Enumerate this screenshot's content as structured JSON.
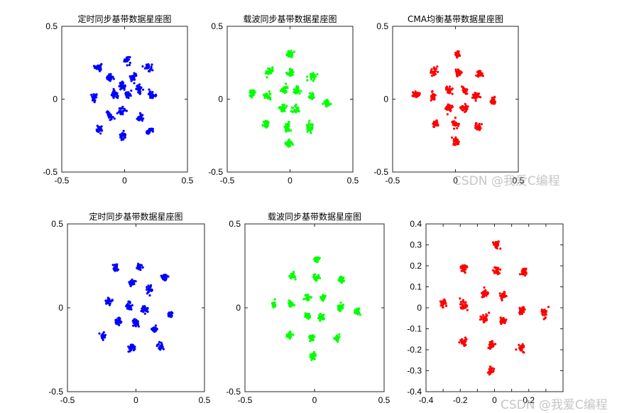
{
  "chart_data": [
    {
      "type": "scatter",
      "title": "定时同步基带数据星座图",
      "color": "#0000ff",
      "xlim": [
        -0.5,
        0.5
      ],
      "ylim": [
        -0.5,
        0.5
      ],
      "xticks": [
        -0.5,
        0,
        0.5
      ],
      "yticks": [
        -0.5,
        0,
        0.5
      ],
      "xtick_labels": [
        "-0.5",
        "0",
        "0.5"
      ],
      "ytick_labels": [
        "-0.5",
        "0",
        "0.5"
      ],
      "clusters": [
        [
          -0.21,
          0.22
        ],
        [
          0.02,
          0.27
        ],
        [
          0.19,
          0.22
        ],
        [
          -0.12,
          0.15
        ],
        [
          0.07,
          0.15
        ],
        [
          -0.02,
          0.09
        ],
        [
          0.12,
          0.07
        ],
        [
          -0.24,
          0.01
        ],
        [
          -0.08,
          0.03
        ],
        [
          0.03,
          0.03
        ],
        [
          0.22,
          0.03
        ],
        [
          -0.12,
          -0.11
        ],
        [
          -0.02,
          -0.08
        ],
        [
          0.12,
          -0.13
        ],
        [
          -0.2,
          -0.21
        ],
        [
          -0.01,
          -0.25
        ],
        [
          0.19,
          -0.22
        ]
      ],
      "spread": 0.022
    },
    {
      "type": "scatter",
      "title": "载波同步基带数据星座图",
      "color": "#00ff00",
      "xlim": [
        -0.5,
        0.5
      ],
      "ylim": [
        -0.5,
        0.5
      ],
      "xticks": [
        -0.5,
        0,
        0.5
      ],
      "yticks": [
        -0.5,
        0,
        0.5
      ],
      "xtick_labels": [
        "-0.5",
        "0",
        "0.5"
      ],
      "ytick_labels": [
        "-0.5",
        "0",
        "0.5"
      ],
      "clusters": [
        [
          0.0,
          0.31
        ],
        [
          -0.16,
          0.19
        ],
        [
          0.0,
          0.18
        ],
        [
          0.18,
          0.16
        ],
        [
          -0.3,
          0.04
        ],
        [
          -0.18,
          0.02
        ],
        [
          -0.05,
          0.07
        ],
        [
          0.06,
          0.06
        ],
        [
          0.17,
          0.02
        ],
        [
          0.29,
          -0.03
        ],
        [
          -0.06,
          -0.06
        ],
        [
          0.05,
          -0.07
        ],
        [
          -0.19,
          -0.17
        ],
        [
          -0.02,
          -0.19
        ],
        [
          0.16,
          -0.19
        ],
        [
          -0.01,
          -0.3
        ]
      ],
      "spread": 0.022
    },
    {
      "type": "scatter",
      "title": "CMA均衡基带数据星座图",
      "color": "#ff0000",
      "xlim": [
        -0.5,
        0.5
      ],
      "ylim": [
        -0.5,
        0.5
      ],
      "xticks": [
        -0.5,
        0,
        0.5
      ],
      "yticks": [
        -0.5,
        0,
        0.5
      ],
      "xtick_labels": [
        "-0.5",
        "0",
        "0.5"
      ],
      "ytick_labels": [
        "-0.5",
        "0",
        "0.5"
      ],
      "clusters": [
        [
          0.02,
          0.31
        ],
        [
          -0.17,
          0.19
        ],
        [
          0.02,
          0.18
        ],
        [
          0.19,
          0.17
        ],
        [
          -0.31,
          0.03
        ],
        [
          -0.18,
          0.02
        ],
        [
          -0.05,
          0.06
        ],
        [
          0.07,
          0.06
        ],
        [
          0.17,
          0.02
        ],
        [
          0.3,
          -0.01
        ],
        [
          -0.05,
          -0.06
        ],
        [
          0.07,
          -0.06
        ],
        [
          -0.16,
          -0.17
        ],
        [
          0.0,
          -0.17
        ],
        [
          0.18,
          -0.19
        ],
        [
          0.0,
          -0.29
        ]
      ],
      "spread": 0.022
    },
    {
      "type": "scatter",
      "title": "定时同步基带数据星座图",
      "color": "#0000ff",
      "xlim": [
        -0.5,
        0.5
      ],
      "ylim": [
        -0.5,
        0.5
      ],
      "xticks": [
        -0.5,
        0,
        0.5
      ],
      "yticks": [
        -0.5,
        0,
        0.5
      ],
      "xtick_labels": [
        "-0.5",
        "0",
        "0.5"
      ],
      "ytick_labels": [
        "-0.5",
        "0",
        "0.5"
      ],
      "clusters": [
        [
          -0.15,
          0.24
        ],
        [
          0.02,
          0.24
        ],
        [
          0.21,
          0.18
        ],
        [
          -0.03,
          0.15
        ],
        [
          0.1,
          0.11
        ],
        [
          -0.2,
          0.04
        ],
        [
          -0.05,
          0.01
        ],
        [
          0.06,
          -0.01
        ],
        [
          0.25,
          -0.04
        ],
        [
          -0.13,
          -0.08
        ],
        [
          0.0,
          -0.09
        ],
        [
          0.13,
          -0.13
        ],
        [
          -0.24,
          -0.17
        ],
        [
          -0.03,
          -0.24
        ],
        [
          0.18,
          -0.23
        ]
      ],
      "spread": 0.018
    },
    {
      "type": "scatter",
      "title": "载波同步基带数据星座图",
      "color": "#00ff00",
      "xlim": [
        -0.5,
        0.5
      ],
      "ylim": [
        -0.5,
        0.5
      ],
      "xticks": [
        -0.5,
        0,
        0.5
      ],
      "yticks": [
        -0.5,
        0,
        0.5
      ],
      "xtick_labels": [
        "-0.5",
        "0",
        "0.5"
      ],
      "ytick_labels": [
        "-0.5",
        "0",
        "0.5"
      ],
      "clusters": [
        [
          0.02,
          0.29
        ],
        [
          -0.16,
          0.19
        ],
        [
          0.01,
          0.18
        ],
        [
          0.19,
          0.17
        ],
        [
          -0.29,
          0.02
        ],
        [
          -0.17,
          0.02
        ],
        [
          -0.05,
          0.06
        ],
        [
          0.06,
          0.06
        ],
        [
          0.18,
          0.0
        ],
        [
          0.3,
          -0.02
        ],
        [
          -0.05,
          -0.05
        ],
        [
          0.05,
          -0.06
        ],
        [
          -0.18,
          -0.16
        ],
        [
          -0.02,
          -0.18
        ],
        [
          0.16,
          -0.18
        ],
        [
          -0.01,
          -0.29
        ]
      ],
      "spread": 0.016
    },
    {
      "type": "scatter",
      "title": "",
      "color": "#ff0000",
      "xlim": [
        -0.4,
        0.4
      ],
      "ylim": [
        -0.4,
        0.4
      ],
      "xticks": [
        -0.4,
        -0.3,
        -0.2,
        -0.1,
        0,
        0.1,
        0.2,
        0.3,
        0.4
      ],
      "yticks": [
        -0.4,
        -0.3,
        -0.2,
        -0.1,
        0,
        0.1,
        0.2,
        0.3,
        0.4
      ],
      "xtick_labels": [
        "-0.4",
        "",
        "-0.2",
        "",
        "0",
        "",
        "0.2",
        "",
        ""
      ],
      "ytick_labels": [
        "-0.4",
        "-0.3",
        "-0.2",
        "-0.1",
        "0",
        "0.1",
        "0.2",
        "0.3",
        "0.4"
      ],
      "clusters": [
        [
          0.01,
          0.3
        ],
        [
          -0.18,
          0.19
        ],
        [
          0.01,
          0.18
        ],
        [
          0.17,
          0.17
        ],
        [
          -0.3,
          0.02
        ],
        [
          -0.18,
          0.01
        ],
        [
          -0.06,
          0.07
        ],
        [
          0.05,
          0.06
        ],
        [
          0.16,
          -0.01
        ],
        [
          0.29,
          -0.02
        ],
        [
          -0.06,
          -0.05
        ],
        [
          0.05,
          -0.06
        ],
        [
          -0.18,
          -0.16
        ],
        [
          -0.02,
          -0.18
        ],
        [
          0.16,
          -0.19
        ],
        [
          -0.02,
          -0.3
        ]
      ],
      "spread": 0.016
    }
  ],
  "watermarks": [
    "CSDN @我爱C编程",
    "CSDN @我爱C编程"
  ]
}
